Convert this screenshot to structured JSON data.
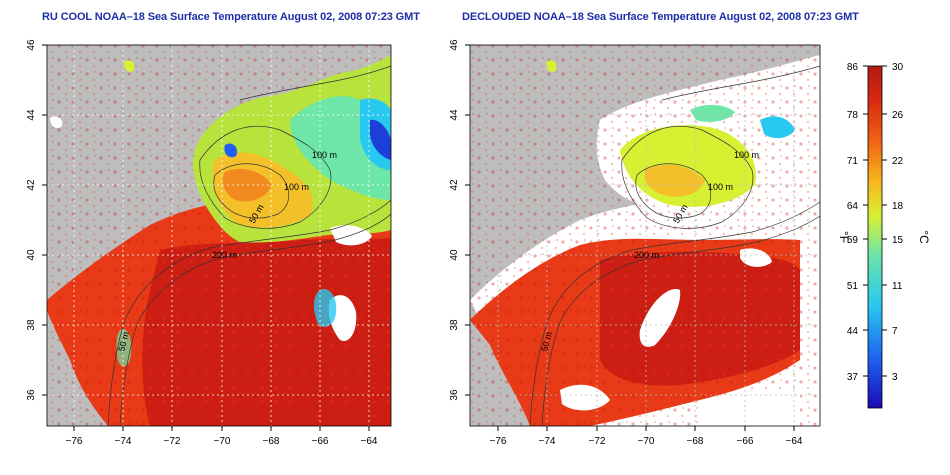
{
  "panels": [
    {
      "title": "RU COOL NOAA–18 Sea Surface Temperature August 02, 2008 07:23 GMT",
      "variant": "cool"
    },
    {
      "title": "DECLOUDED NOAA–18 Sea Surface Temperature August 02, 2008 07:23 GMT",
      "variant": "declouded"
    }
  ],
  "axes": {
    "lon_ticks": [
      "−76",
      "−74",
      "−72",
      "−70",
      "−68",
      "−66",
      "−64"
    ],
    "lon_values": [
      -76,
      -74,
      -72,
      -70,
      -68,
      -66,
      -64
    ],
    "lat_ticks": [
      "46",
      "44",
      "42",
      "40",
      "38",
      "36"
    ],
    "lat_values": [
      46,
      44,
      42,
      40,
      38,
      36
    ],
    "lon_range": [
      -77,
      -63
    ],
    "lat_range": [
      35,
      46
    ]
  },
  "contour_labels": [
    {
      "text": "100 m"
    },
    {
      "text": "100 m"
    },
    {
      "text": "50 m"
    },
    {
      "text": "200 m"
    },
    {
      "text": "50 m"
    }
  ],
  "colorbar": {
    "fahrenheit_ticks": [
      "86",
      "78",
      "71",
      "64",
      "59",
      "51",
      "44",
      "37"
    ],
    "celsius_ticks": [
      "30",
      "26",
      "22",
      "18",
      "15",
      "11",
      "7",
      "3"
    ],
    "celsius_values": [
      30,
      26,
      22,
      18,
      15,
      11,
      7,
      3
    ],
    "range_c": [
      0,
      30
    ],
    "unit_f": "°F",
    "unit_c": "°C",
    "stops": [
      "#1a0bb3",
      "#1e5ef0",
      "#28c8f0",
      "#6ee6a8",
      "#d8f032",
      "#f8b81e",
      "#f06414",
      "#d82812",
      "#b41a12"
    ]
  },
  "colors": {
    "land": "#bdbdbd",
    "cloud": "#ffffff",
    "warm_water": "#e83a16",
    "deep_water": "#cc1e12",
    "gulf_of_maine": "#b8e23c",
    "title": "#1c2ea8"
  }
}
